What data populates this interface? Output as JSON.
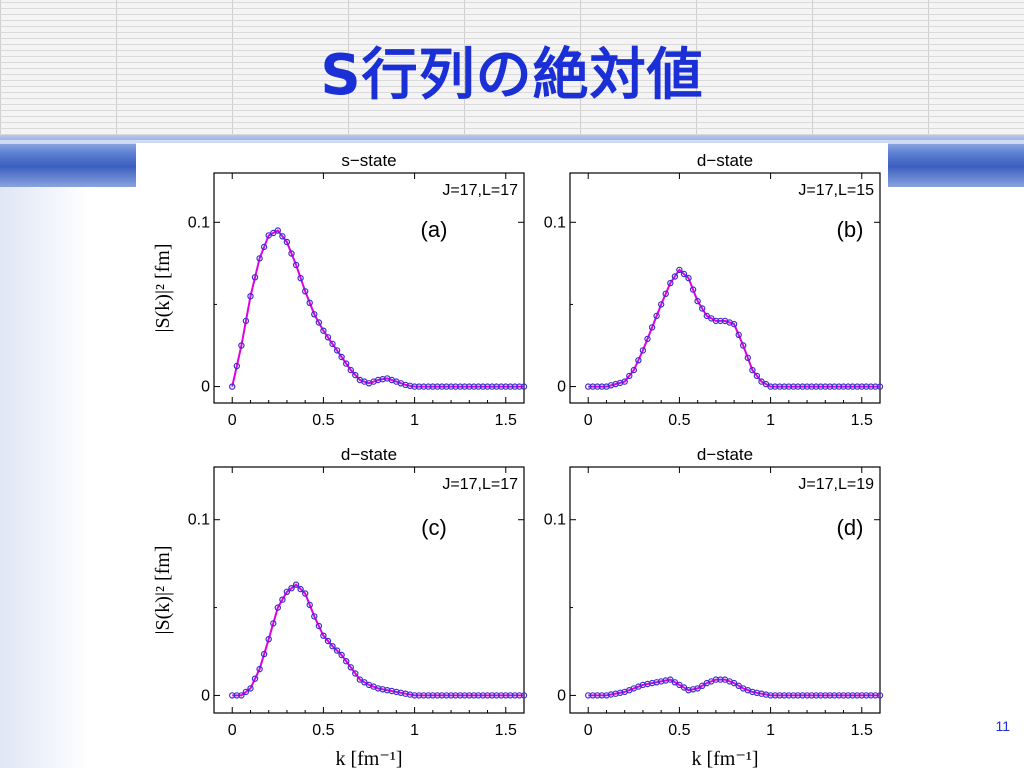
{
  "slide": {
    "title": "S行列の絶対値",
    "page_number": "11",
    "accent_color": "#1a2fd6"
  },
  "chart_data": [
    {
      "type": "line",
      "title": "s−state",
      "annotation": "J=17,L=17",
      "panel_label": "(a)",
      "ylabel": "|S(k)|² [fm]",
      "xlabel": "",
      "xlim": [
        -0.1,
        1.6
      ],
      "ylim": [
        -0.01,
        0.13
      ],
      "xticks": [
        "0",
        "0.5",
        "1",
        "1.5"
      ],
      "yticks": [
        "0",
        "0.1"
      ],
      "line_color": "#e000e0",
      "marker_color": "#3a2fd0",
      "series": [
        {
          "x": [
            0,
            0.05,
            0.1,
            0.15,
            0.2,
            0.25,
            0.3,
            0.35,
            0.4,
            0.45,
            0.5,
            0.55,
            0.6,
            0.65,
            0.7,
            0.75,
            0.8,
            0.85,
            0.9,
            0.95,
            1.0,
            1.1,
            1.2,
            1.3,
            1.4,
            1.5,
            1.6
          ],
          "y": [
            0.0,
            0.025,
            0.055,
            0.078,
            0.092,
            0.095,
            0.088,
            0.074,
            0.058,
            0.044,
            0.034,
            0.026,
            0.018,
            0.01,
            0.004,
            0.002,
            0.004,
            0.005,
            0.003,
            0.001,
            0.0,
            0.0,
            0.0,
            0.0,
            0.0,
            0.0,
            0.0
          ]
        }
      ]
    },
    {
      "type": "line",
      "title": "d−state",
      "annotation": "J=17,L=15",
      "panel_label": "(b)",
      "ylabel": "",
      "xlabel": "",
      "xlim": [
        -0.1,
        1.6
      ],
      "ylim": [
        -0.01,
        0.13
      ],
      "xticks": [
        "0",
        "0.5",
        "1",
        "1.5"
      ],
      "yticks": [
        "0",
        "0.1"
      ],
      "line_color": "#e000e0",
      "marker_color": "#3a2fd0",
      "series": [
        {
          "x": [
            0,
            0.1,
            0.2,
            0.25,
            0.3,
            0.35,
            0.4,
            0.45,
            0.5,
            0.55,
            0.6,
            0.65,
            0.7,
            0.75,
            0.8,
            0.85,
            0.9,
            0.95,
            1.0,
            1.1,
            1.2,
            1.3,
            1.4,
            1.5,
            1.6
          ],
          "y": [
            0.0,
            0.0,
            0.003,
            0.01,
            0.022,
            0.036,
            0.05,
            0.063,
            0.071,
            0.066,
            0.052,
            0.043,
            0.04,
            0.04,
            0.038,
            0.025,
            0.01,
            0.003,
            0.0,
            0.0,
            0.0,
            0.0,
            0.0,
            0.0,
            0.0
          ]
        }
      ]
    },
    {
      "type": "line",
      "title": "d−state",
      "annotation": "J=17,L=17",
      "panel_label": "(c)",
      "ylabel": "|S(k)|² [fm]",
      "xlabel": "k [fm⁻¹]",
      "xlim": [
        -0.1,
        1.6
      ],
      "ylim": [
        -0.01,
        0.13
      ],
      "xticks": [
        "0",
        "0.5",
        "1",
        "1.5"
      ],
      "yticks": [
        "0",
        "0.1"
      ],
      "line_color": "#e000e0",
      "marker_color": "#3a2fd0",
      "series": [
        {
          "x": [
            0,
            0.05,
            0.1,
            0.15,
            0.2,
            0.25,
            0.3,
            0.35,
            0.4,
            0.45,
            0.5,
            0.55,
            0.6,
            0.65,
            0.7,
            0.75,
            0.8,
            0.85,
            0.9,
            0.95,
            1.0,
            1.1,
            1.2,
            1.3,
            1.4,
            1.5,
            1.6
          ],
          "y": [
            0.0,
            0.0,
            0.004,
            0.015,
            0.032,
            0.05,
            0.059,
            0.063,
            0.058,
            0.045,
            0.034,
            0.028,
            0.023,
            0.016,
            0.009,
            0.006,
            0.004,
            0.003,
            0.002,
            0.001,
            0.0,
            0.0,
            0.0,
            0.0,
            0.0,
            0.0,
            0.0
          ]
        }
      ]
    },
    {
      "type": "line",
      "title": "d−state",
      "annotation": "J=17,L=19",
      "panel_label": "(d)",
      "ylabel": "",
      "xlabel": "k [fm⁻¹]",
      "xlim": [
        -0.1,
        1.6
      ],
      "ylim": [
        -0.01,
        0.13
      ],
      "xticks": [
        "0",
        "0.5",
        "1",
        "1.5"
      ],
      "yticks": [
        "0",
        "0.1"
      ],
      "line_color": "#e000e0",
      "marker_color": "#3a2fd0",
      "series": [
        {
          "x": [
            0,
            0.1,
            0.2,
            0.25,
            0.3,
            0.35,
            0.4,
            0.45,
            0.5,
            0.55,
            0.6,
            0.65,
            0.7,
            0.75,
            0.8,
            0.85,
            0.9,
            0.95,
            1.0,
            1.1,
            1.2,
            1.3,
            1.4,
            1.5,
            1.6
          ],
          "y": [
            0.0,
            0.0,
            0.002,
            0.004,
            0.006,
            0.007,
            0.008,
            0.009,
            0.006,
            0.003,
            0.004,
            0.007,
            0.009,
            0.009,
            0.007,
            0.004,
            0.002,
            0.001,
            0.0,
            0.0,
            0.0,
            0.0,
            0.0,
            0.0,
            0.0
          ]
        }
      ]
    }
  ]
}
